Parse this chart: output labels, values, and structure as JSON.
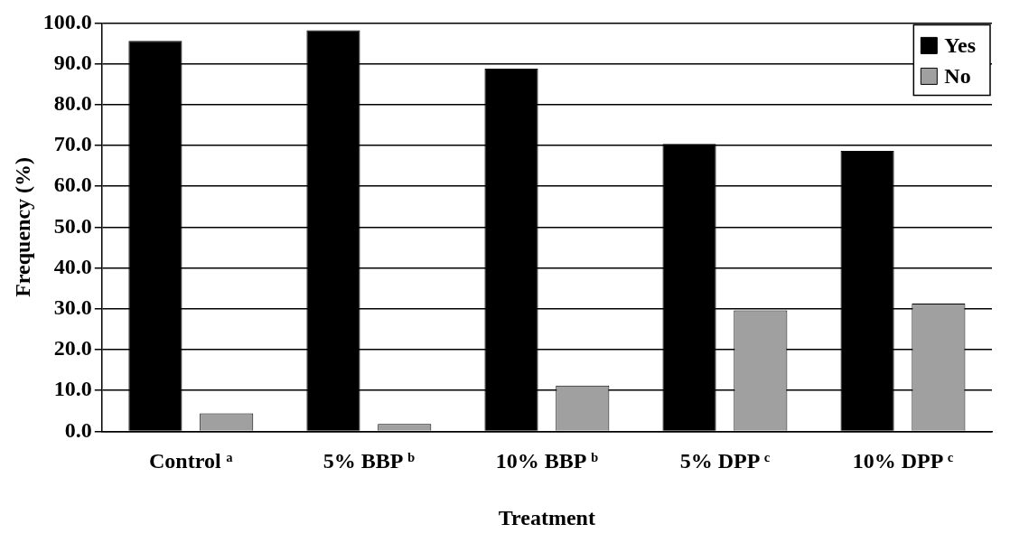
{
  "chart_data": {
    "type": "bar",
    "xlabel": "Treatment",
    "ylabel": "Frequency (%)",
    "categories": [
      "Control ᵃ",
      "5% BBP ᵇ",
      "10% BBP ᵇ",
      "5% DPP ᶜ",
      "10% DPP ᶜ"
    ],
    "series": [
      {
        "name": "Yes",
        "color": "#000000",
        "values": [
          95.6,
          98.2,
          88.8,
          70.4,
          68.7
        ]
      },
      {
        "name": "No",
        "color": "#a0a0a0",
        "values": [
          4.4,
          1.8,
          11.2,
          29.6,
          31.3
        ]
      }
    ],
    "ylim": [
      0,
      100
    ],
    "yticks": [
      {
        "value": 0,
        "label": "0.0"
      },
      {
        "value": 10,
        "label": "10.0"
      },
      {
        "value": 20,
        "label": "20.0"
      },
      {
        "value": 30,
        "label": "30.0"
      },
      {
        "value": 40,
        "label": "40.0"
      },
      {
        "value": 50,
        "label": "50.0"
      },
      {
        "value": 60,
        "label": "60.0"
      },
      {
        "value": 70,
        "label": "70.0"
      },
      {
        "value": 80,
        "label": "80.0"
      },
      {
        "value": 90,
        "label": "90.0"
      },
      {
        "value": 100,
        "label": "100.0"
      }
    ],
    "grid": "y",
    "legend": "top right"
  }
}
